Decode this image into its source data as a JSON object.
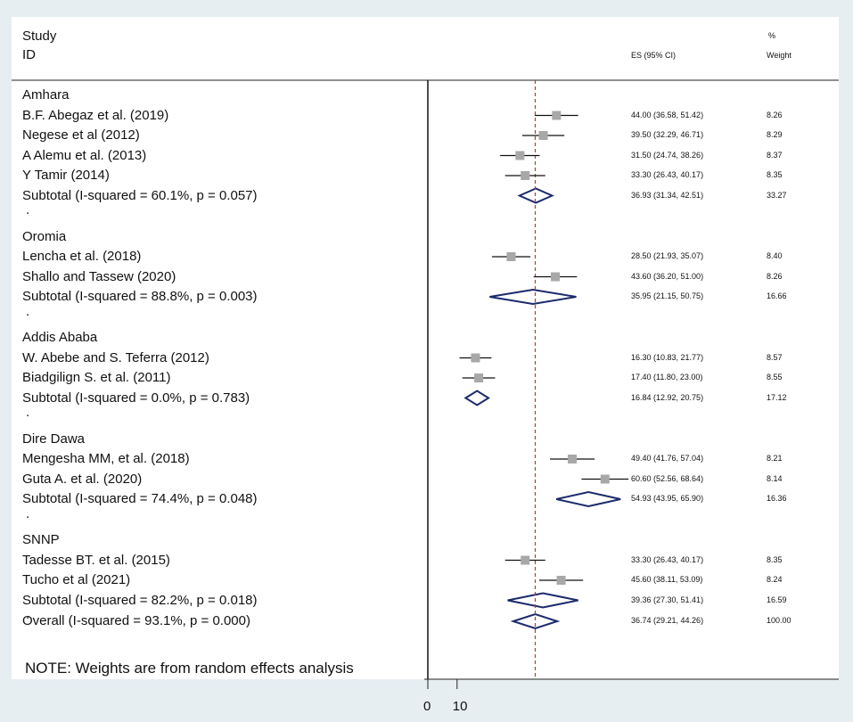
{
  "header": {
    "study": "Study",
    "id": "ID",
    "es": "ES (95% CI)",
    "pct": "%",
    "weight": "Weight"
  },
  "note": "NOTE: Weights are from random effects analysis",
  "chart_data": {
    "type": "forest",
    "axis": {
      "null_line": 0,
      "ticks": [
        0,
        10
      ],
      "tick_labels": [
        "0",
        "10"
      ]
    },
    "overall_effect": 36.74,
    "groups": [
      {
        "name": "Amhara",
        "studies": [
          {
            "label": "B.F. Abegaz et al. (2019)",
            "es": 44.0,
            "lo": 36.58,
            "hi": 51.42,
            "ci_text": "44.00 (36.58, 51.42)",
            "weight": "8.26"
          },
          {
            "label": "Negese et al (2012)",
            "es": 39.5,
            "lo": 32.29,
            "hi": 46.71,
            "ci_text": "39.50 (32.29, 46.71)",
            "weight": "8.29"
          },
          {
            "label": "A Alemu et al. (2013)",
            "es": 31.5,
            "lo": 24.74,
            "hi": 38.26,
            "ci_text": "31.50 (24.74, 38.26)",
            "weight": "8.37"
          },
          {
            "label": "Y Tamir (2014)",
            "es": 33.3,
            "lo": 26.43,
            "hi": 40.17,
            "ci_text": "33.30 (26.43, 40.17)",
            "weight": "8.35"
          }
        ],
        "subtotal": {
          "label": "Subtotal  (I-squared = 60.1%, p = 0.057)",
          "es": 36.93,
          "lo": 31.34,
          "hi": 42.51,
          "ci_text": "36.93 (31.34, 42.51)",
          "weight": "33.27"
        }
      },
      {
        "name": "Oromia",
        "studies": [
          {
            "label": "Lencha et al. (2018)",
            "es": 28.5,
            "lo": 21.93,
            "hi": 35.07,
            "ci_text": "28.50 (21.93, 35.07)",
            "weight": "8.40"
          },
          {
            "label": "Shallo and Tassew (2020)",
            "es": 43.6,
            "lo": 36.2,
            "hi": 51.0,
            "ci_text": "43.60 (36.20, 51.00)",
            "weight": "8.26"
          }
        ],
        "subtotal": {
          "label": "Subtotal  (I-squared = 88.8%, p = 0.003)",
          "es": 35.95,
          "lo": 21.15,
          "hi": 50.75,
          "ci_text": "35.95 (21.15, 50.75)",
          "weight": "16.66"
        }
      },
      {
        "name": "Addis Ababa",
        "studies": [
          {
            "label": "W. Abebe and S. Teferra (2012)",
            "es": 16.3,
            "lo": 10.83,
            "hi": 21.77,
            "ci_text": "16.30 (10.83, 21.77)",
            "weight": "8.57"
          },
          {
            "label": "Biadgilign S. et al. (2011)",
            "es": 17.4,
            "lo": 11.8,
            "hi": 23.0,
            "ci_text": "17.40 (11.80, 23.00)",
            "weight": "8.55"
          }
        ],
        "subtotal": {
          "label": "Subtotal  (I-squared = 0.0%, p = 0.783)",
          "es": 16.84,
          "lo": 12.92,
          "hi": 20.75,
          "ci_text": "16.84 (12.92, 20.75)",
          "weight": "17.12"
        }
      },
      {
        "name": "Dire Dawa",
        "studies": [
          {
            "label": "Mengesha MM, et al. (2018)",
            "es": 49.4,
            "lo": 41.76,
            "hi": 57.04,
            "ci_text": "49.40 (41.76, 57.04)",
            "weight": "8.21"
          },
          {
            "label": "Guta A. et al. (2020)",
            "es": 60.6,
            "lo": 52.56,
            "hi": 68.64,
            "ci_text": "60.60 (52.56, 68.64)",
            "weight": "8.14"
          }
        ],
        "subtotal": {
          "label": "Subtotal  (I-squared = 74.4%, p = 0.048)",
          "es": 54.93,
          "lo": 43.95,
          "hi": 65.9,
          "ci_text": "54.93 (43.95, 65.90)",
          "weight": "16.36"
        }
      },
      {
        "name": "SNNP",
        "studies": [
          {
            "label": "Tadesse BT. et al. (2015)",
            "es": 33.3,
            "lo": 26.43,
            "hi": 40.17,
            "ci_text": "33.30 (26.43, 40.17)",
            "weight": "8.35"
          },
          {
            "label": "Tucho et al (2021)",
            "es": 45.6,
            "lo": 38.11,
            "hi": 53.09,
            "ci_text": "45.60 (38.11, 53.09)",
            "weight": "8.24"
          }
        ],
        "subtotal": {
          "label": "Subtotal  (I-squared = 82.2%, p = 0.018)",
          "es": 39.36,
          "lo": 27.3,
          "hi": 51.41,
          "ci_text": "39.36 (27.30, 51.41)",
          "weight": "16.59"
        }
      }
    ],
    "overall": {
      "label": "Overall  (I-squared = 93.1%, p = 0.000)",
      "es": 36.74,
      "lo": 29.21,
      "hi": 44.26,
      "ci_text": "36.74 (29.21, 44.26)",
      "weight": "100.00"
    }
  }
}
